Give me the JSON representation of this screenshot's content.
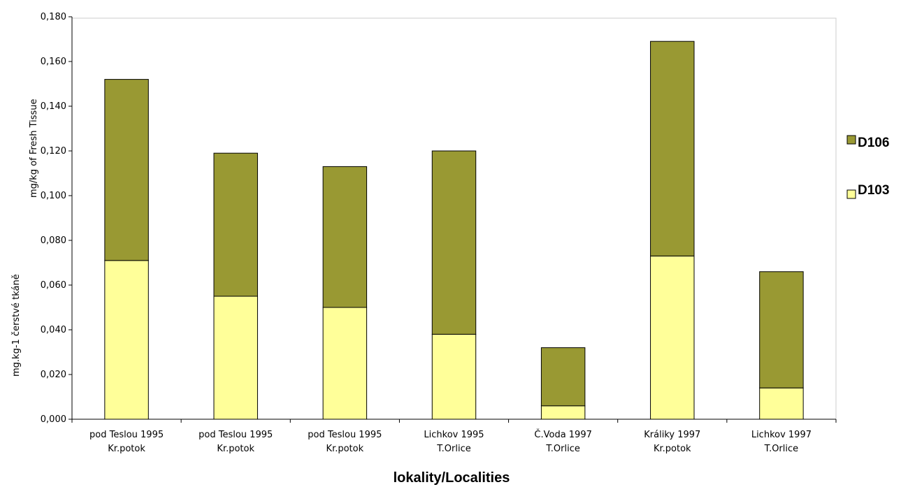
{
  "chart_data": {
    "type": "bar",
    "stacked": true,
    "categories": [
      [
        "pod Teslou 1995",
        "Kr.potok"
      ],
      [
        "pod Teslou 1995",
        "Kr.potok"
      ],
      [
        "pod Teslou 1995",
        "Kr.potok"
      ],
      [
        "Lichkov 1995",
        "T.Orlice"
      ],
      [
        "Č.Voda 1997",
        "T.Orlice"
      ],
      [
        "Králiky 1997",
        "Kr.potok"
      ],
      [
        "Lichkov 1997",
        "T.Orlice"
      ]
    ],
    "series": [
      {
        "name": "D103",
        "color": "#ffff99",
        "values": [
          0.071,
          0.055,
          0.05,
          0.038,
          0.006,
          0.073,
          0.014
        ]
      },
      {
        "name": "D106",
        "color": "#999933",
        "values": [
          0.081,
          0.064,
          0.063,
          0.082,
          0.026,
          0.096,
          0.052
        ]
      }
    ],
    "ylim": [
      0,
      0.18
    ],
    "yticks": [
      "0,000",
      "0,020",
      "0,040",
      "0,060",
      "0,080",
      "0,100",
      "0,120",
      "0,140",
      "0,160",
      "0,180"
    ],
    "ylabel_top": "mg/kg of Fresh Tissue",
    "ylabel_bottom": "mg.kg-1 čerstvé tkáně",
    "xlabel": "lokality/Localities",
    "legend": [
      "D106",
      "D103"
    ],
    "legend_position": "right",
    "grid": false
  }
}
